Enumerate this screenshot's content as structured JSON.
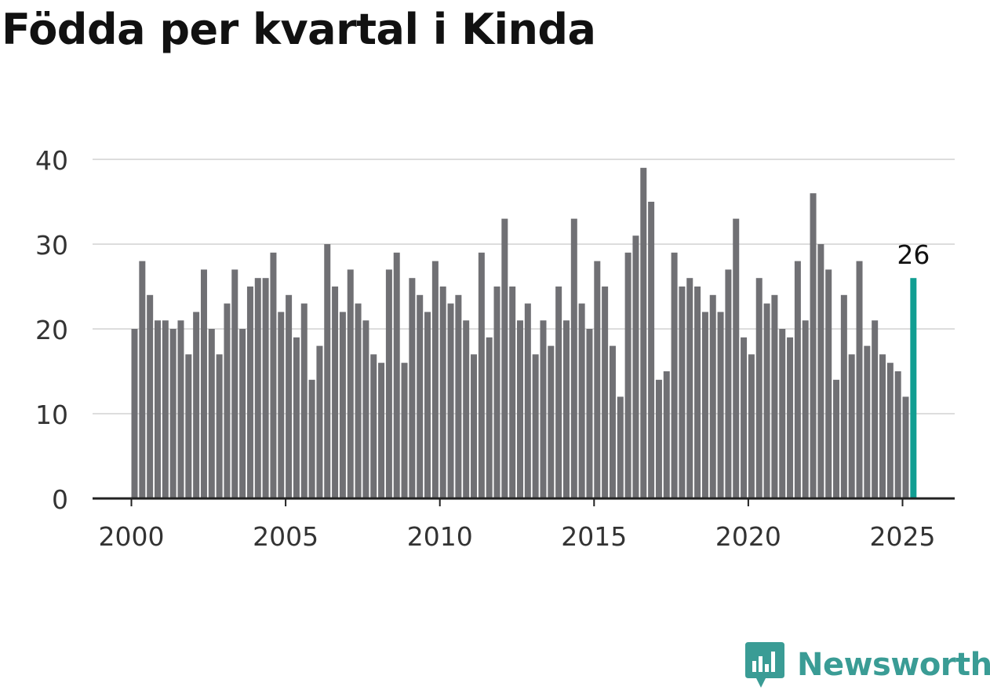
{
  "chart_data": {
    "type": "bar",
    "title": "Födda per kvartal i Kinda",
    "x_start": "2000 Q1",
    "x_ticks": [
      "2000",
      "2005",
      "2010",
      "2015",
      "2020",
      "2025"
    ],
    "y_ticks": [
      0,
      10,
      20,
      30,
      40
    ],
    "ylim": [
      0,
      40
    ],
    "grid": true,
    "bar_color": "#707074",
    "highlight_color": "#119e92",
    "series": [
      {
        "values": [
          20,
          28,
          24,
          21,
          21,
          20,
          21,
          17,
          22,
          27,
          20,
          17,
          23,
          27,
          20,
          25,
          26,
          26,
          29,
          22,
          24,
          19,
          23,
          14,
          18,
          30,
          25,
          22,
          27,
          23,
          21,
          17,
          16,
          27,
          29,
          16,
          26,
          24,
          22,
          28,
          25,
          23,
          24,
          21,
          17,
          29,
          19,
          25,
          33,
          25,
          21,
          23,
          17,
          21,
          18,
          25,
          21,
          33,
          23,
          20,
          28,
          25,
          18,
          12,
          29,
          31,
          39,
          35,
          14,
          15,
          29,
          25,
          26,
          25,
          22,
          24,
          22,
          27,
          33,
          19,
          17,
          26,
          23,
          24,
          20,
          19,
          28,
          21,
          36,
          30,
          27,
          14,
          24,
          17,
          28,
          18,
          21,
          17,
          16,
          15,
          12,
          26
        ]
      }
    ],
    "highlight_label": "26"
  },
  "brand": {
    "name": "Newsworthy",
    "color": "#3a9c95"
  }
}
